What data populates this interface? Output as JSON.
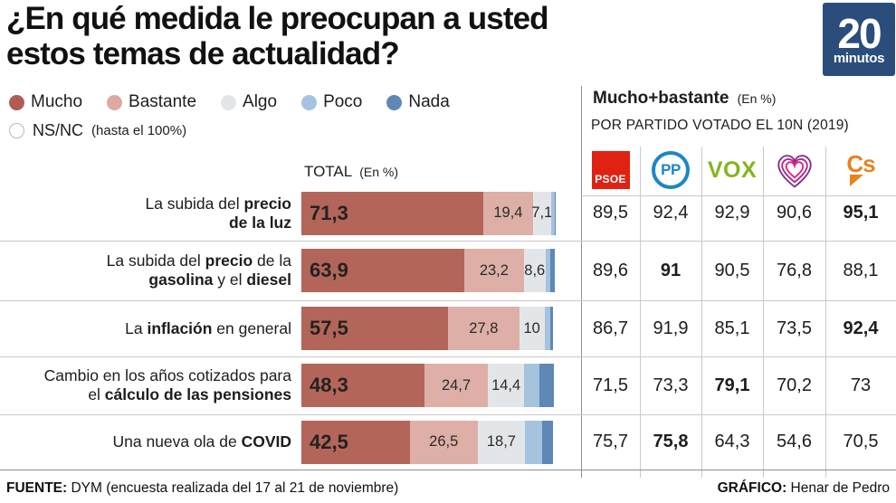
{
  "header": {
    "title_line1": "¿En qué medida le preocupan a usted",
    "title_line2": "estos temas de actualidad?",
    "brand": {
      "number": "20",
      "name": "minutos"
    }
  },
  "legend": {
    "items": [
      {
        "name": "Mucho",
        "color": "#b05c52"
      },
      {
        "name": "Bastante",
        "color": "#dcaaa1"
      },
      {
        "name": "Algo",
        "color": "#e3e6e9"
      },
      {
        "name": "Poco",
        "color": "#a5c2de"
      },
      {
        "name": "Nada",
        "color": "#5f88b6"
      }
    ],
    "nsnc_label": "NS/NC",
    "nsnc_note": "(hasta el 100%)"
  },
  "left_panel": {
    "column_header": "TOTAL",
    "column_header_note": "(En %)"
  },
  "right_panel": {
    "title": "Mucho+bastante",
    "title_note": "(En %)",
    "subtitle": "POR PARTIDO VOTADO EL 10N (2019)",
    "parties": [
      {
        "id": "psoe",
        "label": "PSOE",
        "color": "#e02213"
      },
      {
        "id": "pp",
        "label": "PP",
        "color": "#1d86c8"
      },
      {
        "id": "vox",
        "label": "VOX",
        "color": "#84b51e"
      },
      {
        "id": "unidas-podemos",
        "label": "",
        "color": "#b4258c"
      },
      {
        "id": "cs",
        "label": "Cs",
        "color": "#e8821e"
      }
    ]
  },
  "chart_data": {
    "type": "bar",
    "stacked": true,
    "unit": "%",
    "xlim": [
      0,
      100
    ],
    "series_names": [
      "Mucho",
      "Bastante",
      "Algo",
      "Poco",
      "Nada",
      "NS/NC"
    ],
    "colors": {
      "Mucho": "#b4655a",
      "Bastante": "#ddafa7",
      "Algo": "#e3e6e9",
      "Poco": "#a5c2de",
      "Nada": "#5f88b6",
      "NS/NC": "#ffffff"
    },
    "note": "Poco / Nada / NS-NC segment values are unlabeled in the graphic and estimated from pixel widths",
    "rows": [
      {
        "label": "La subida del **precio**\n**de la luz**",
        "plain_label": "La subida del precio de la luz",
        "segments": [
          71.3,
          19.4,
          7.1,
          1.4,
          0.4,
          0.4
        ],
        "segment_labels": [
          "71,3",
          "19,4",
          "7,1",
          "",
          "",
          ""
        ],
        "party_values": [
          "89,5",
          "92,4",
          "92,9",
          "90,6",
          "95,1"
        ],
        "bold_party_index": 4
      },
      {
        "label": "La subida del **precio** de la\n**gasolina** y el **diesel**",
        "plain_label": "La subida del precio de la gasolina y el diesel",
        "segments": [
          63.9,
          23.2,
          8.6,
          2.0,
          1.5,
          0.8
        ],
        "segment_labels": [
          "63,9",
          "23,2",
          "8,6",
          "",
          "",
          ""
        ],
        "party_values": [
          "89,6",
          "91",
          "90,5",
          "76,8",
          "88,1"
        ],
        "bold_party_index": 1
      },
      {
        "label": "La **inflación** en general",
        "plain_label": "La inflación en general",
        "segments": [
          57.5,
          27.8,
          10,
          2.3,
          0.9,
          1.5
        ],
        "segment_labels": [
          "57,5",
          "27,8",
          "10",
          "",
          "",
          ""
        ],
        "party_values": [
          "86,7",
          "91,9",
          "85,1",
          "73,5",
          "92,4"
        ],
        "bold_party_index": 4
      },
      {
        "label": "Cambio en los años cotizados para\nel **cálculo de las pensiones**",
        "plain_label": "Cambio en los años cotizados para el cálculo de las pensiones",
        "segments": [
          48.3,
          24.7,
          14.4,
          6.0,
          5.5,
          1.1
        ],
        "segment_labels": [
          "48,3",
          "24,7",
          "14,4",
          "",
          "",
          ""
        ],
        "party_values": [
          "71,5",
          "73,3",
          "79,1",
          "70,2",
          "73"
        ],
        "bold_party_index": 2
      },
      {
        "label": "Una nueva ola de **COVID**",
        "plain_label": "Una nueva ola de COVID",
        "segments": [
          42.5,
          26.5,
          18.7,
          6.5,
          4.5,
          1.3
        ],
        "segment_labels": [
          "42,5",
          "26,5",
          "18,7",
          "",
          "",
          ""
        ],
        "party_values": [
          "75,7",
          "75,8",
          "64,3",
          "54,6",
          "70,5"
        ],
        "bold_party_index": 1
      }
    ]
  },
  "footer": {
    "source_label": "FUENTE:",
    "source_text": " DYM (encuesta realizada del 17 al 21 de noviembre)",
    "credit_label": "GRÁFICO:",
    "credit_text": " Henar de Pedro"
  }
}
